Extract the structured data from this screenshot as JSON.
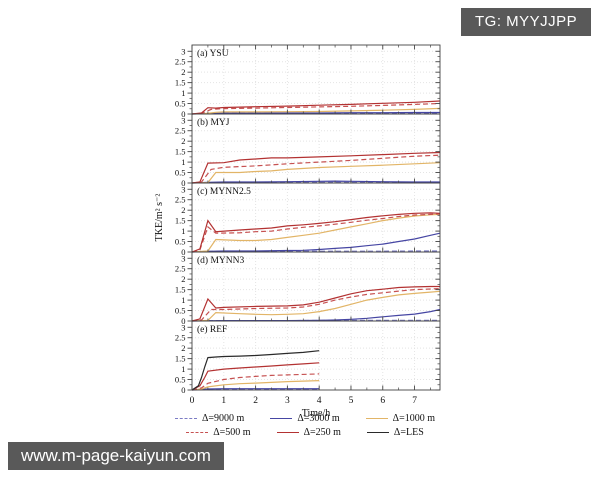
{
  "tag": {
    "text": "TG: MYYJJPP"
  },
  "watermark": {
    "text": "www.m-page-kaiyun.com"
  },
  "chart_data": {
    "type": "line",
    "title": "",
    "xlabel": "Time/h",
    "ylabel": "TKE/m² s⁻²",
    "xlim": [
      0,
      7.8
    ],
    "ylim": [
      0,
      3.3
    ],
    "xticks": [
      0,
      1,
      2,
      3,
      4,
      5,
      6,
      7
    ],
    "yticks": [
      0,
      0.5,
      1,
      1.5,
      2,
      2.5,
      3
    ],
    "grid": true,
    "legend_position": "below",
    "legend": [
      {
        "key": "d9000",
        "label": "Δ=9000 m",
        "color": "#7b7bc4",
        "dash": true
      },
      {
        "key": "d3000",
        "label": "Δ=3000 m",
        "color": "#4646a3",
        "dash": false
      },
      {
        "key": "d1000",
        "label": "Δ=1000 m",
        "color": "#e2b567",
        "dash": false
      },
      {
        "key": "d500",
        "label": "Δ=500 m",
        "color": "#c65151",
        "dash": true
      },
      {
        "key": "d250",
        "label": "Δ=250 m",
        "color": "#b33232",
        "dash": false
      },
      {
        "key": "les",
        "label": "Δ=LES",
        "color": "#2a2a2a",
        "dash": false
      }
    ],
    "panels": [
      {
        "id": "a",
        "label": "(a)  YSU",
        "series": [
          {
            "key": "d9000",
            "x": [
              0,
              0.4,
              1,
              2,
              3,
              4,
              5,
              6,
              7,
              7.8
            ],
            "y": [
              0,
              0.02,
              0.03,
              0.03,
              0.03,
              0.04,
              0.04,
              0.04,
              0.05,
              0.05
            ]
          },
          {
            "key": "d3000",
            "x": [
              0,
              0.4,
              1,
              2,
              3,
              4,
              5,
              6,
              7,
              7.8
            ],
            "y": [
              0,
              0.02,
              0.04,
              0.04,
              0.05,
              0.05,
              0.06,
              0.06,
              0.07,
              0.07
            ]
          },
          {
            "key": "d1000",
            "x": [
              0,
              0.4,
              0.75,
              1,
              2,
              3,
              4,
              5,
              6,
              7,
              7.8
            ],
            "y": [
              0,
              0.02,
              0.08,
              0.1,
              0.1,
              0.11,
              0.12,
              0.15,
              0.18,
              0.22,
              0.27
            ]
          },
          {
            "key": "d500",
            "x": [
              0,
              0.3,
              0.6,
              1,
              2,
              3,
              4,
              5,
              6,
              7,
              7.8
            ],
            "y": [
              0,
              0.03,
              0.22,
              0.26,
              0.28,
              0.31,
              0.34,
              0.37,
              0.41,
              0.46,
              0.5
            ]
          },
          {
            "key": "d250",
            "x": [
              0,
              0.3,
              0.5,
              0.75,
              1,
              2,
              3,
              4,
              5,
              6,
              7,
              7.8
            ],
            "y": [
              0,
              0.05,
              0.3,
              0.28,
              0.31,
              0.35,
              0.38,
              0.42,
              0.46,
              0.51,
              0.56,
              0.62
            ]
          }
        ]
      },
      {
        "id": "b",
        "label": "(b)  MYJ",
        "series": [
          {
            "key": "d9000",
            "x": [
              0,
              0.5,
              1,
              2,
              3,
              4,
              5,
              6,
              7,
              7.8
            ],
            "y": [
              0,
              0.02,
              0.02,
              0.02,
              0.03,
              0.03,
              0.03,
              0.03,
              0.03,
              0.03
            ]
          },
          {
            "key": "d3000",
            "x": [
              0,
              0.5,
              1,
              2,
              3,
              4,
              4.5,
              5,
              6,
              7,
              7.8
            ],
            "y": [
              0,
              0.03,
              0.05,
              0.05,
              0.06,
              0.08,
              0.09,
              0.08,
              0.06,
              0.05,
              0.05
            ]
          },
          {
            "key": "d1000",
            "x": [
              0,
              0.5,
              0.75,
              1.5,
              2,
              2.5,
              3,
              4,
              5,
              6,
              7,
              7.8
            ],
            "y": [
              0,
              0.02,
              0.5,
              0.5,
              0.55,
              0.58,
              0.65,
              0.74,
              0.8,
              0.85,
              0.92,
              0.97
            ]
          },
          {
            "key": "d500",
            "x": [
              0,
              0.3,
              0.6,
              1,
              2,
              3,
              4,
              5,
              6,
              7,
              7.8
            ],
            "y": [
              0,
              0.05,
              0.65,
              0.75,
              0.82,
              0.92,
              1.0,
              1.08,
              1.18,
              1.28,
              1.33
            ]
          },
          {
            "key": "d250",
            "x": [
              0,
              0.25,
              0.5,
              1,
              1.5,
              2,
              2.5,
              3,
              4,
              5,
              6,
              7,
              7.8
            ],
            "y": [
              0,
              0.05,
              0.95,
              0.97,
              1.1,
              1.15,
              1.2,
              1.2,
              1.25,
              1.3,
              1.36,
              1.42,
              1.46
            ]
          }
        ]
      },
      {
        "id": "c",
        "label": "(c)  MYNN2.5",
        "series": [
          {
            "key": "d9000",
            "x": [
              0,
              0.5,
              1,
              2,
              3,
              4,
              5,
              6,
              7,
              7.8
            ],
            "y": [
              0,
              0.03,
              0.03,
              0.03,
              0.03,
              0.04,
              0.04,
              0.04,
              0.05,
              0.05
            ]
          },
          {
            "key": "d3000",
            "x": [
              0,
              0.5,
              1,
              2,
              3,
              3.5,
              4,
              4.5,
              5,
              5.5,
              6,
              6.5,
              7,
              7.5,
              7.8
            ],
            "y": [
              0,
              0.03,
              0.05,
              0.05,
              0.07,
              0.08,
              0.12,
              0.17,
              0.22,
              0.3,
              0.38,
              0.5,
              0.62,
              0.8,
              0.9
            ]
          },
          {
            "key": "d1000",
            "x": [
              0,
              0.5,
              0.75,
              1.5,
              2,
              2.5,
              3,
              3.5,
              4,
              4.5,
              5,
              5.5,
              6,
              6.5,
              7,
              7.5,
              7.8
            ],
            "y": [
              0,
              0.05,
              0.6,
              0.55,
              0.55,
              0.6,
              0.7,
              0.8,
              0.9,
              1.05,
              1.2,
              1.35,
              1.5,
              1.62,
              1.72,
              1.78,
              1.8
            ]
          },
          {
            "key": "d500",
            "x": [
              0,
              0.25,
              0.5,
              0.75,
              1.5,
              2,
              2.5,
              3,
              3.5,
              4,
              4.5,
              5,
              5.5,
              6,
              6.5,
              7,
              7.5,
              7.8
            ],
            "y": [
              0,
              0.1,
              1.2,
              0.9,
              0.92,
              0.97,
              1.0,
              1.1,
              1.18,
              1.25,
              1.33,
              1.42,
              1.52,
              1.6,
              1.7,
              1.77,
              1.8,
              1.82
            ]
          },
          {
            "key": "d250",
            "x": [
              0,
              0.25,
              0.5,
              0.75,
              1.5,
              2,
              2.5,
              3,
              3.5,
              4,
              4.5,
              5,
              5.5,
              6,
              6.5,
              7,
              7.5,
              7.8
            ],
            "y": [
              0,
              0.15,
              1.5,
              0.97,
              1.05,
              1.1,
              1.15,
              1.25,
              1.3,
              1.37,
              1.45,
              1.55,
              1.65,
              1.73,
              1.8,
              1.85,
              1.87,
              1.85
            ]
          }
        ]
      },
      {
        "id": "d",
        "label": "(d)  MYNN3",
        "series": [
          {
            "key": "d9000",
            "x": [
              0,
              0.5,
              1,
              2,
              3,
              4,
              5,
              6,
              7,
              7.8
            ],
            "y": [
              0,
              0.02,
              0.02,
              0.02,
              0.02,
              0.03,
              0.03,
              0.03,
              0.03,
              0.03
            ]
          },
          {
            "key": "d3000",
            "x": [
              0,
              1,
              2,
              3,
              4,
              4.5,
              5,
              5.5,
              6,
              6.5,
              7,
              7.5,
              7.8
            ],
            "y": [
              0,
              0.02,
              0.02,
              0.02,
              0.03,
              0.05,
              0.08,
              0.13,
              0.2,
              0.27,
              0.33,
              0.45,
              0.55
            ]
          },
          {
            "key": "d1000",
            "x": [
              0,
              0.5,
              0.75,
              1.5,
              2,
              2.5,
              3,
              3.5,
              4,
              4.5,
              5,
              5.5,
              6,
              6.5,
              7,
              7.5,
              7.8
            ],
            "y": [
              0,
              0.03,
              0.4,
              0.35,
              0.32,
              0.3,
              0.32,
              0.35,
              0.45,
              0.6,
              0.8,
              1.0,
              1.13,
              1.25,
              1.32,
              1.38,
              1.42
            ]
          },
          {
            "key": "d500",
            "x": [
              0,
              0.3,
              0.6,
              1,
              2,
              3,
              3.5,
              4,
              4.5,
              5,
              5.5,
              6,
              6.5,
              7,
              7.5,
              7.8
            ],
            "y": [
              0,
              0.05,
              0.55,
              0.55,
              0.6,
              0.62,
              0.67,
              0.8,
              1.0,
              1.15,
              1.27,
              1.35,
              1.43,
              1.5,
              1.53,
              1.55
            ]
          },
          {
            "key": "d250",
            "x": [
              0,
              0.25,
              0.5,
              0.75,
              1,
              2,
              3,
              3.5,
              4,
              4.5,
              5,
              5.5,
              6,
              6.5,
              7,
              7.5,
              7.8
            ],
            "y": [
              0,
              0.1,
              1.05,
              0.62,
              0.65,
              0.7,
              0.72,
              0.77,
              0.9,
              1.1,
              1.3,
              1.45,
              1.52,
              1.6,
              1.63,
              1.65,
              1.65
            ]
          }
        ]
      },
      {
        "id": "e",
        "label": "(e)  REF",
        "series": [
          {
            "key": "d9000",
            "x": [
              0,
              0.5,
              1,
              2,
              3,
              4
            ],
            "y": [
              0,
              0.02,
              0.02,
              0.02,
              0.02,
              0.02
            ]
          },
          {
            "key": "d3000",
            "x": [
              0,
              0.5,
              1,
              2,
              3,
              4
            ],
            "y": [
              0,
              0.05,
              0.06,
              0.06,
              0.06,
              0.06
            ]
          },
          {
            "key": "d1000",
            "x": [
              0,
              0.3,
              0.5,
              1,
              1.5,
              2,
              3,
              4
            ],
            "y": [
              0,
              0.05,
              0.15,
              0.25,
              0.3,
              0.33,
              0.4,
              0.45
            ]
          },
          {
            "key": "d500",
            "x": [
              0,
              0.3,
              0.5,
              1,
              1.5,
              2,
              2.5,
              3,
              4
            ],
            "y": [
              0,
              0.1,
              0.32,
              0.5,
              0.6,
              0.65,
              0.7,
              0.72,
              0.77
            ]
          },
          {
            "key": "d250",
            "x": [
              0,
              0.25,
              0.4,
              0.5,
              1,
              1.5,
              2,
              2.5,
              3,
              3.5,
              4
            ],
            "y": [
              0,
              0.2,
              0.6,
              0.9,
              1.0,
              1.05,
              1.1,
              1.15,
              1.2,
              1.25,
              1.3
            ]
          },
          {
            "key": "les",
            "x": [
              0,
              0.2,
              0.3,
              0.4,
              0.5,
              0.75,
              1,
              1.5,
              2,
              2.5,
              3,
              3.5,
              4
            ],
            "y": [
              0,
              0.2,
              0.6,
              1.1,
              1.55,
              1.58,
              1.6,
              1.62,
              1.65,
              1.7,
              1.75,
              1.8,
              1.88
            ]
          }
        ]
      }
    ]
  }
}
